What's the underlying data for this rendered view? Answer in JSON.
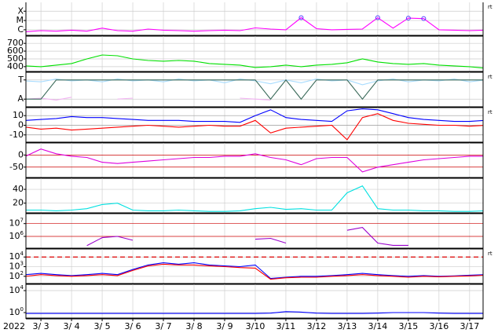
{
  "time_axis": {
    "year": "2022",
    "xlim": [
      2.51,
      17.44
    ],
    "xticks": [
      {
        "value": 3,
        "label": "3/ 3"
      },
      {
        "value": 4,
        "label": "3/ 4"
      },
      {
        "value": 5,
        "label": "3/ 5"
      },
      {
        "value": 6,
        "label": "3/ 6"
      },
      {
        "value": 7,
        "label": "3/ 7"
      },
      {
        "value": 8,
        "label": "3/ 8"
      },
      {
        "value": 9,
        "label": "3/ 9"
      },
      {
        "value": 10,
        "label": "3/10"
      },
      {
        "value": 11,
        "label": "3/11"
      },
      {
        "value": 12,
        "label": "3/12"
      },
      {
        "value": 13,
        "label": "3/13"
      },
      {
        "value": 14,
        "label": "3/14"
      },
      {
        "value": 15,
        "label": "3/15"
      },
      {
        "value": 16,
        "label": "3/16"
      },
      {
        "value": 17,
        "label": "3/17"
      }
    ]
  },
  "x": [
    2.5,
    3,
    3.5,
    4,
    4.5,
    5,
    5.5,
    6,
    6.5,
    7,
    7.5,
    8,
    8.5,
    9,
    9.5,
    10,
    10.5,
    11,
    11.5,
    12,
    12.5,
    13,
    13.5,
    14,
    14.5,
    15,
    15.5,
    16,
    16.5,
    17,
    17.5
  ],
  "chart_data": [
    {
      "type": "line",
      "log": true,
      "ylim": [
        2.5e-07,
        0.0009
      ],
      "note": "rt",
      "grid_color": "#cccccc",
      "yticks": [
        {
          "value": 0.0001,
          "label": "X"
        },
        {
          "value": 1e-05,
          "label": "M"
        },
        {
          "value": 1e-06,
          "label": "C"
        }
      ],
      "series": [
        {
          "color": "#ff00ff",
          "values": [
            6e-07,
            8e-07,
            7e-07,
            9e-07,
            7e-07,
            1.5e-06,
            8e-07,
            7e-07,
            1.2e-06,
            9e-07,
            8e-07,
            7e-07,
            8e-07,
            9e-07,
            8e-07,
            1.6e-06,
            1.2e-06,
            1e-06,
            2e-05,
            1.3e-06,
            1e-06,
            1.1e-06,
            1.2e-06,
            2e-05,
            1.5e-06,
            1.8e-05,
            1.6e-05,
            1e-06,
            9e-07,
            8e-07,
            9e-07
          ]
        },
        {
          "color": "#5040ff",
          "marker": "circle",
          "values": [
            null,
            null,
            null,
            null,
            null,
            null,
            null,
            null,
            null,
            null,
            null,
            null,
            null,
            null,
            null,
            null,
            null,
            null,
            2e-05,
            null,
            null,
            null,
            null,
            2e-05,
            null,
            1.8e-05,
            1.6e-05,
            null,
            null,
            null,
            null
          ]
        }
      ]
    },
    {
      "type": "line",
      "log": false,
      "ylim": [
        338,
        793
      ],
      "grid_color": "#cccccc",
      "yticks": [
        700,
        600,
        500,
        400
      ],
      "series": [
        {
          "color": "#00e000",
          "values": [
            410,
            400,
            420,
            440,
            500,
            550,
            540,
            500,
            480,
            470,
            480,
            470,
            440,
            430,
            420,
            390,
            400,
            420,
            400,
            420,
            430,
            450,
            500,
            460,
            440,
            430,
            440,
            420,
            410,
            400,
            380
          ]
        }
      ]
    },
    {
      "type": "line",
      "log": false,
      "ylim": [
        -1.8,
        1.8
      ],
      "note": "rt",
      "grid_color": "#cccccc",
      "yticks": [
        {
          "value": 1,
          "label": "T"
        },
        {
          "value": -1,
          "label": "A"
        }
      ],
      "series": [
        {
          "color": "#a8dcff",
          "values": [
            0.9,
            0.8,
            1.1,
            0.9,
            1.0,
            0.8,
            1.1,
            0.9,
            1.0,
            0.8,
            1.1,
            0.9,
            1.0,
            0.7,
            1.1,
            0.9,
            0.6,
            1.0,
            0.7,
            1.1,
            0.9,
            1.0,
            0.5,
            0.9,
            1.1,
            0.8,
            1.0,
            0.9,
            1.1,
            0.8,
            1.0
          ]
        },
        {
          "color": "#f2b2f2",
          "values": [
            -1.0,
            -0.9,
            -1.1,
            -0.8,
            null,
            null,
            -1.0,
            -0.9,
            null,
            null,
            null,
            null,
            null,
            null,
            -0.9,
            -1.0,
            -1.1,
            null,
            -1.0,
            null,
            null,
            null,
            -0.9,
            null,
            null,
            null,
            null,
            null,
            null,
            null,
            null
          ]
        },
        {
          "color": "#3a6a5a",
          "values": [
            -1,
            -1,
            1,
            1,
            1,
            1,
            1,
            1,
            1,
            1,
            1,
            1,
            1,
            1,
            1,
            1,
            -1,
            1,
            -1,
            1,
            1,
            1,
            -1,
            1,
            1,
            1,
            1,
            1,
            1,
            1,
            1
          ]
        }
      ]
    },
    {
      "type": "line",
      "log": false,
      "ylim": [
        -17.5,
        18.3
      ],
      "note": "rt",
      "grid_color": "#999999",
      "yticks": [
        10,
        0,
        -10
      ],
      "series": [
        {
          "color": "#0000ff",
          "values": [
            5,
            6,
            7,
            9,
            8,
            8,
            7,
            6,
            5,
            5,
            5,
            4,
            4,
            4,
            3,
            10,
            16,
            8,
            6,
            5,
            4,
            15,
            17,
            16,
            12,
            8,
            6,
            5,
            4,
            4,
            5
          ]
        },
        {
          "color": "#ff0000",
          "values": [
            -2,
            -4,
            -3,
            -5,
            -4,
            -3,
            -2,
            -1,
            0,
            -1,
            -2,
            -1,
            0,
            -1,
            -1,
            5,
            -8,
            -3,
            -2,
            -1,
            0,
            -15,
            8,
            12,
            5,
            2,
            1,
            0,
            0,
            -1,
            0
          ]
        }
      ]
    },
    {
      "type": "line",
      "log": false,
      "ylim": [
        -93,
        50
      ],
      "grid_color": "#cc0000",
      "yticks": [
        0,
        -50
      ],
      "series": [
        {
          "color": "#dd00dd",
          "values": [
            -5,
            25,
            5,
            -5,
            -10,
            -30,
            -35,
            -30,
            -25,
            -20,
            -15,
            -10,
            -10,
            -5,
            -5,
            5,
            -10,
            -20,
            -40,
            -15,
            -10,
            -10,
            -70,
            -50,
            -40,
            -30,
            -20,
            -15,
            -10,
            -5,
            -5
          ]
        }
      ]
    },
    {
      "type": "line",
      "log": false,
      "ylim": [
        6,
        56
      ],
      "grid_color": "#cccccc",
      "yticks": [
        40,
        20
      ],
      "series": [
        {
          "color": "#00e0e0",
          "values": [
            10,
            10,
            9,
            10,
            12,
            18,
            20,
            10,
            9,
            9,
            10,
            9,
            8,
            8,
            9,
            12,
            14,
            11,
            12,
            10,
            10,
            35,
            45,
            12,
            10,
            10,
            9,
            9,
            8,
            8,
            9
          ]
        }
      ]
    },
    {
      "type": "line",
      "log": true,
      "ylim": [
        120000,
        60000000
      ],
      "grid_color": "#cc0000",
      "yticks": [
        {
          "value": 10000000,
          "label": "10",
          "sup": "7"
        },
        {
          "value": 1000000,
          "label": "10",
          "sup": "6"
        }
      ],
      "series": [
        {
          "color": "#9900cc",
          "values": [
            null,
            null,
            null,
            null,
            190000,
            800000,
            1000000,
            500000,
            null,
            null,
            null,
            null,
            null,
            null,
            null,
            600000,
            700000,
            300000,
            null,
            null,
            null,
            3000000,
            5000000,
            300000,
            200000,
            200000,
            null,
            null,
            null,
            null,
            null
          ]
        }
      ]
    },
    {
      "type": "line",
      "log": true,
      "ylim": [
        18,
        68000
      ],
      "note": "rt",
      "grid_color": "#cccccc",
      "threshold": 10000,
      "threshold_color": "#dd0000",
      "yticks": [
        {
          "value": 10000,
          "label": "10",
          "sup": "4"
        },
        {
          "value": 1000,
          "label": "10",
          "sup": "3"
        },
        {
          "value": 100,
          "label": "10",
          "sup": "2"
        }
      ],
      "series": [
        {
          "color": "#0000ff",
          "values": [
            150,
            200,
            150,
            120,
            150,
            200,
            150,
            500,
            1500,
            2500,
            1800,
            2500,
            1500,
            1200,
            1000,
            1500,
            60,
            80,
            100,
            100,
            120,
            150,
            200,
            150,
            120,
            100,
            120,
            100,
            110,
            130,
            150
          ]
        },
        {
          "color": "#ff0000",
          "values": [
            100,
            150,
            120,
            100,
            120,
            150,
            120,
            400,
            1200,
            1800,
            1500,
            1500,
            1200,
            1000,
            800,
            700,
            50,
            70,
            80,
            80,
            100,
            120,
            150,
            120,
            100,
            80,
            100,
            90,
            100,
            110,
            130
          ]
        }
      ]
    },
    {
      "type": "line",
      "log": true,
      "ylim": [
        0.1,
        140000
      ],
      "grid_color": "#cccccc",
      "yticks": [
        {
          "value": 10000,
          "label": "10",
          "sup": "4"
        },
        {
          "value": 1,
          "label": "10",
          "sup": "0"
        }
      ],
      "series": [
        {
          "color": "#0000ff",
          "values": [
            0.7,
            0.7,
            0.7,
            0.7,
            0.7,
            0.7,
            0.7,
            0.7,
            0.7,
            0.7,
            0.7,
            0.7,
            0.7,
            0.7,
            0.7,
            0.7,
            0.8,
            1.5,
            1.2,
            0.8,
            0.7,
            0.7,
            0.7,
            0.8,
            1.0,
            1.0,
            1.0,
            0.8,
            0.7,
            0.7,
            0.7
          ]
        }
      ]
    }
  ]
}
